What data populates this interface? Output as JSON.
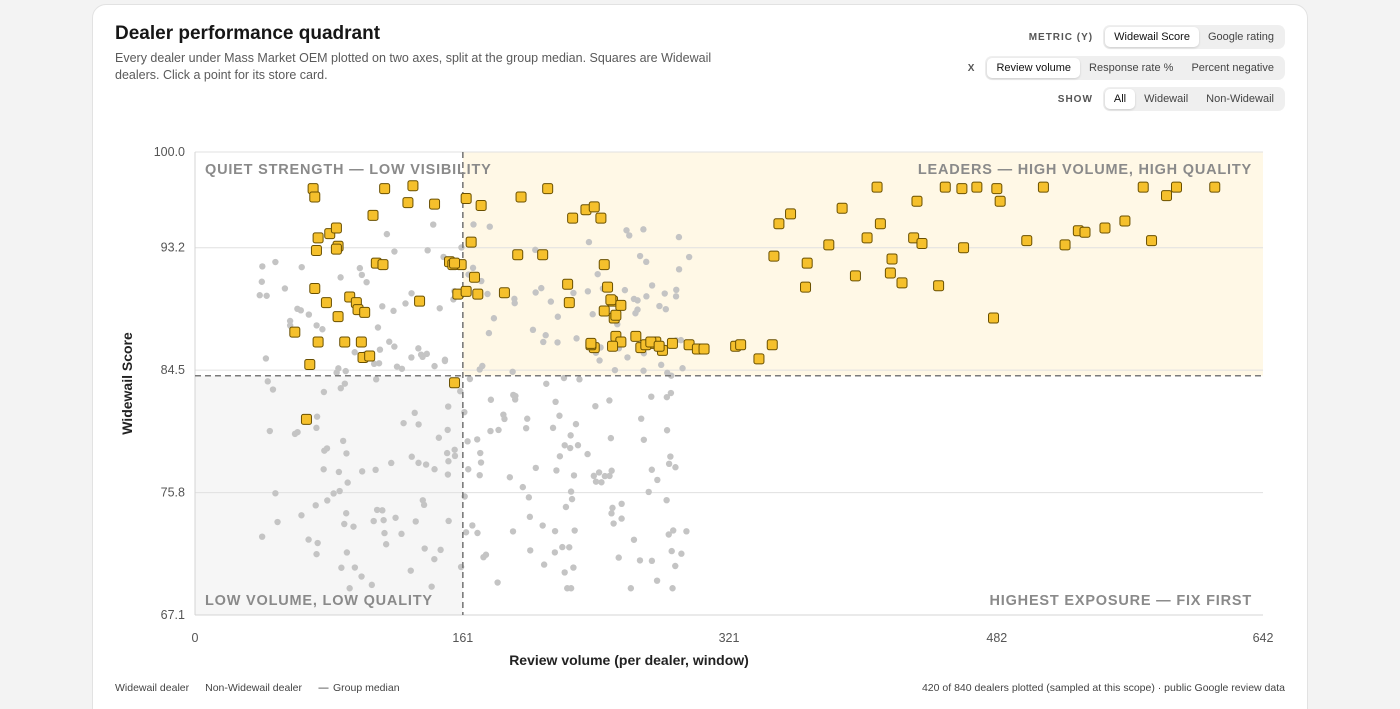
{
  "header": {
    "title": "Dealer performance quadrant",
    "subtitle": "Every dealer under Mass Market OEM plotted on two axes, split at the group median. Squares are Widewail dealers. Click a point for its store card."
  },
  "controls": {
    "metric_label": "METRIC (Y)",
    "metric_options": [
      "Widewail Score",
      "Google rating"
    ],
    "x_label": "X",
    "x_options": [
      "Review volume",
      "Response rate %",
      "Percent negative"
    ],
    "show_label": "SHOW",
    "show_options": [
      "All",
      "Widewail",
      "Non-Widewail"
    ]
  },
  "footer": {
    "legend_widewail": "Widewail dealer",
    "legend_non_widewail": "Non-Widewail dealer",
    "legend_median": "Group median",
    "note": "420 of 840 dealers plotted (sampled at this scope) · public Google review data"
  },
  "colors": {
    "widewail": "#f5c02c",
    "widewail_stroke": "#6a5000",
    "non_widewail": "#c4c4c4",
    "leaders_fill": "#fff8e6",
    "low_fill": "#f6f6f6",
    "median_line": "#8a8a8a"
  },
  "chart_data": {
    "type": "scatter",
    "xlabel": "Review volume (per dealer, window)",
    "ylabel": "Widewail Score",
    "xlim": [
      0,
      642
    ],
    "ylim": [
      67.1,
      100.0
    ],
    "x_ticks": [
      "0",
      "161",
      "321",
      "482",
      "642"
    ],
    "y_ticks": [
      "67.1",
      "75.8",
      "84.5",
      "93.2",
      "100.0"
    ],
    "median_x": 161,
    "median_y": 84.1,
    "grid": true,
    "quadrant_labels": {
      "top_left": "QUIET STRENGTH — LOW VISIBILITY",
      "top_right": "LEADERS — HIGH VOLUME, HIGH QUALITY",
      "bottom_left": "LOW VOLUME, LOW QUALITY",
      "bottom_right": "HIGHEST EXPOSURE — FIX FIRST"
    },
    "series": [
      {
        "name": "Widewail dealer",
        "marker": "square",
        "points": [
          [
            71,
            97.4
          ],
          [
            72,
            96.8
          ],
          [
            74,
            93.9
          ],
          [
            73,
            93.0
          ],
          [
            81,
            94.2
          ],
          [
            85,
            94.6
          ],
          [
            86,
            93.3
          ],
          [
            85,
            93.1
          ],
          [
            107,
            95.5
          ],
          [
            114,
            97.4
          ],
          [
            109,
            92.1
          ],
          [
            131,
            97.6
          ],
          [
            72,
            90.3
          ],
          [
            79,
            89.3
          ],
          [
            86,
            88.3
          ],
          [
            93,
            89.7
          ],
          [
            97,
            89.3
          ],
          [
            98,
            88.8
          ],
          [
            102,
            88.6
          ],
          [
            113,
            92.0
          ],
          [
            128,
            96.4
          ],
          [
            135,
            89.4
          ],
          [
            144,
            96.3
          ],
          [
            160,
            92.0
          ],
          [
            153,
            92.2
          ],
          [
            155,
            92.0
          ],
          [
            156,
            92.1
          ],
          [
            158,
            89.9
          ],
          [
            60,
            87.2
          ],
          [
            74,
            86.5
          ],
          [
            90,
            86.5
          ],
          [
            100,
            86.5
          ],
          [
            101,
            85.4
          ],
          [
            105,
            85.5
          ],
          [
            69,
            84.9
          ],
          [
            67,
            81.0
          ],
          [
            156,
            83.6
          ],
          [
            163,
            96.7
          ],
          [
            172,
            96.2
          ],
          [
            166,
            93.6
          ],
          [
            168,
            91.1
          ],
          [
            163,
            90.1
          ],
          [
            170,
            89.9
          ],
          [
            186,
            90.0
          ],
          [
            194,
            92.7
          ],
          [
            196,
            96.8
          ],
          [
            209,
            92.7
          ],
          [
            212,
            97.4
          ],
          [
            225,
            89.3
          ],
          [
            227,
            95.3
          ],
          [
            235,
            95.9
          ],
          [
            240,
            96.1
          ],
          [
            244,
            95.3
          ],
          [
            246,
            92.0
          ],
          [
            248,
            90.4
          ],
          [
            251,
            89.4
          ],
          [
            224,
            90.6
          ],
          [
            250,
            89.5
          ],
          [
            252,
            88.2
          ],
          [
            253,
            88.4
          ],
          [
            256,
            89.1
          ],
          [
            240,
            86.1
          ],
          [
            246,
            88.7
          ],
          [
            253,
            86.9
          ],
          [
            256,
            86.5
          ],
          [
            265,
            86.9
          ],
          [
            238,
            86.3
          ],
          [
            238,
            86.4
          ],
          [
            275,
            86.4
          ],
          [
            277,
            86.5
          ],
          [
            251,
            86.2
          ],
          [
            268,
            86.1
          ],
          [
            271,
            86.3
          ],
          [
            274,
            86.5
          ],
          [
            281,
            85.9
          ],
          [
            287,
            86.4
          ],
          [
            297,
            86.3
          ],
          [
            279,
            86.2
          ],
          [
            302,
            86.0
          ],
          [
            306,
            86.0
          ],
          [
            325,
            86.2
          ],
          [
            328,
            86.3
          ],
          [
            339,
            85.3
          ],
          [
            347,
            86.3
          ],
          [
            348,
            92.6
          ],
          [
            351,
            94.9
          ],
          [
            358,
            95.6
          ],
          [
            367,
            90.4
          ],
          [
            368,
            92.1
          ],
          [
            381,
            93.4
          ],
          [
            389,
            96.0
          ],
          [
            410,
            97.5
          ],
          [
            397,
            91.2
          ],
          [
            404,
            93.9
          ],
          [
            412,
            94.9
          ],
          [
            418,
            91.4
          ],
          [
            425,
            90.7
          ],
          [
            432,
            93.9
          ],
          [
            434,
            96.5
          ],
          [
            419,
            92.4
          ],
          [
            437,
            93.5
          ],
          [
            447,
            90.5
          ],
          [
            462,
            93.2
          ],
          [
            451,
            97.5
          ],
          [
            461,
            97.4
          ],
          [
            470,
            97.5
          ],
          [
            482,
            97.4
          ],
          [
            484,
            96.5
          ],
          [
            480,
            88.2
          ],
          [
            500,
            93.7
          ],
          [
            510,
            97.5
          ],
          [
            523,
            93.4
          ],
          [
            531,
            94.4
          ],
          [
            535,
            94.3
          ],
          [
            547,
            94.6
          ],
          [
            559,
            95.1
          ],
          [
            570,
            97.5
          ],
          [
            575,
            93.7
          ],
          [
            584,
            96.9
          ],
          [
            590,
            97.5
          ],
          [
            613,
            97.5
          ]
        ]
      },
      {
        "name": "Non-Widewail dealer",
        "marker": "circle",
        "points": []
      }
    ]
  }
}
